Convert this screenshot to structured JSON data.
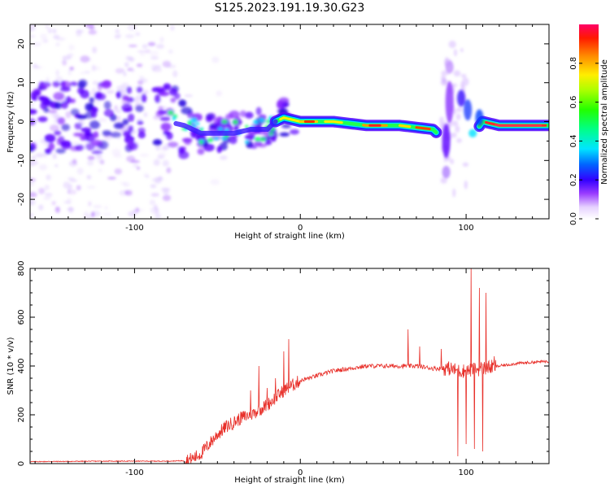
{
  "figure_title": "S125.2023.191.19.30.G23",
  "chart_data": [
    {
      "type": "heatmap",
      "title": "S125.2023.191.19.30.G23",
      "xlabel": "Height of straight line (km)",
      "ylabel": "Frequency (Hz)",
      "xlim": [
        -163,
        150
      ],
      "ylim": [
        -25,
        25
      ],
      "x_ticks": [
        -100,
        0,
        100
      ],
      "y_ticks": [
        -20,
        -10,
        0,
        10,
        20
      ],
      "colorbar": {
        "label": "Normalized spectral amplitude",
        "range": [
          0,
          1
        ],
        "ticks": [
          0.0,
          0.2,
          0.4,
          0.6,
          0.8
        ],
        "colormap": "rainbow-like: white-lavender (0) -> violet -> blue -> cyan -> green -> yellow -> orange -> red/magenta (1)"
      },
      "ridge_center_hz": [
        {
          "x": -163,
          "y": 1
        },
        {
          "x": -140,
          "y": 1
        },
        {
          "x": -120,
          "y": 1
        },
        {
          "x": -100,
          "y": 1
        },
        {
          "x": -80,
          "y": 0
        },
        {
          "x": -70,
          "y": -1
        },
        {
          "x": -60,
          "y": -3
        },
        {
          "x": -50,
          "y": -3
        },
        {
          "x": -40,
          "y": -3
        },
        {
          "x": -30,
          "y": -2
        },
        {
          "x": -20,
          "y": -2
        },
        {
          "x": -15,
          "y": 0
        },
        {
          "x": -10,
          "y": 1
        },
        {
          "x": 0,
          "y": 0
        },
        {
          "x": 20,
          "y": 0
        },
        {
          "x": 40,
          "y": -1
        },
        {
          "x": 60,
          "y": -1
        },
        {
          "x": 80,
          "y": -2
        },
        {
          "x": 85,
          "y": -4
        },
        {
          "x": 90,
          "y": 0
        },
        {
          "x": 100,
          "y": 2
        },
        {
          "x": 105,
          "y": -3
        },
        {
          "x": 110,
          "y": 0
        },
        {
          "x": 120,
          "y": -1
        },
        {
          "x": 150,
          "y": -1
        }
      ]
    },
    {
      "type": "line",
      "xlabel": "Height of straight line (km)",
      "ylabel": "SNR (10 * v/v)",
      "xlim": [
        -163,
        150
      ],
      "ylim": [
        0,
        800
      ],
      "x_ticks": [
        -100,
        0,
        100
      ],
      "y_ticks": [
        0,
        200,
        400,
        600,
        800
      ],
      "series": [
        {
          "color": "#e8302a",
          "points": [
            {
              "x": -163,
              "y": 8
            },
            {
              "x": -140,
              "y": 9
            },
            {
              "x": -120,
              "y": 10
            },
            {
              "x": -100,
              "y": 10
            },
            {
              "x": -80,
              "y": 10
            },
            {
              "x": -70,
              "y": 12
            },
            {
              "x": -65,
              "y": 20
            },
            {
              "x": -60,
              "y": 40
            },
            {
              "x": -55,
              "y": 80
            },
            {
              "x": -50,
              "y": 120
            },
            {
              "x": -45,
              "y": 150
            },
            {
              "x": -40,
              "y": 170
            },
            {
              "x": -35,
              "y": 190
            },
            {
              "x": -30,
              "y": 200
            },
            {
              "x": -25,
              "y": 220
            },
            {
              "x": -20,
              "y": 240
            },
            {
              "x": -15,
              "y": 270
            },
            {
              "x": -10,
              "y": 300
            },
            {
              "x": -5,
              "y": 320
            },
            {
              "x": 0,
              "y": 340
            },
            {
              "x": 5,
              "y": 350
            },
            {
              "x": 10,
              "y": 360
            },
            {
              "x": 20,
              "y": 380
            },
            {
              "x": 30,
              "y": 390
            },
            {
              "x": 40,
              "y": 400
            },
            {
              "x": 50,
              "y": 400
            },
            {
              "x": 60,
              "y": 400
            },
            {
              "x": 70,
              "y": 400
            },
            {
              "x": 80,
              "y": 390
            },
            {
              "x": 90,
              "y": 390
            },
            {
              "x": 95,
              "y": 380
            },
            {
              "x": 100,
              "y": 380
            },
            {
              "x": 110,
              "y": 390
            },
            {
              "x": 120,
              "y": 400
            },
            {
              "x": 130,
              "y": 410
            },
            {
              "x": 140,
              "y": 415
            },
            {
              "x": 150,
              "y": 420
            }
          ],
          "spikes": [
            {
              "x": -30,
              "y": 300
            },
            {
              "x": -25,
              "y": 400
            },
            {
              "x": -20,
              "y": 310
            },
            {
              "x": -15,
              "y": 350
            },
            {
              "x": -10,
              "y": 460
            },
            {
              "x": -7,
              "y": 510
            },
            {
              "x": 65,
              "y": 550
            },
            {
              "x": 72,
              "y": 480
            },
            {
              "x": 85,
              "y": 470
            },
            {
              "x": 95,
              "y": 560
            },
            {
              "x": 100,
              "y": 680
            },
            {
              "x": 103,
              "y": 810
            },
            {
              "x": 108,
              "y": 720
            },
            {
              "x": 112,
              "y": 700
            },
            {
              "x": 117,
              "y": 440
            }
          ],
          "dips": [
            {
              "x": 95,
              "y": 30
            },
            {
              "x": 100,
              "y": 80
            },
            {
              "x": 105,
              "y": 60
            },
            {
              "x": 110,
              "y": 50
            }
          ]
        }
      ]
    }
  ]
}
